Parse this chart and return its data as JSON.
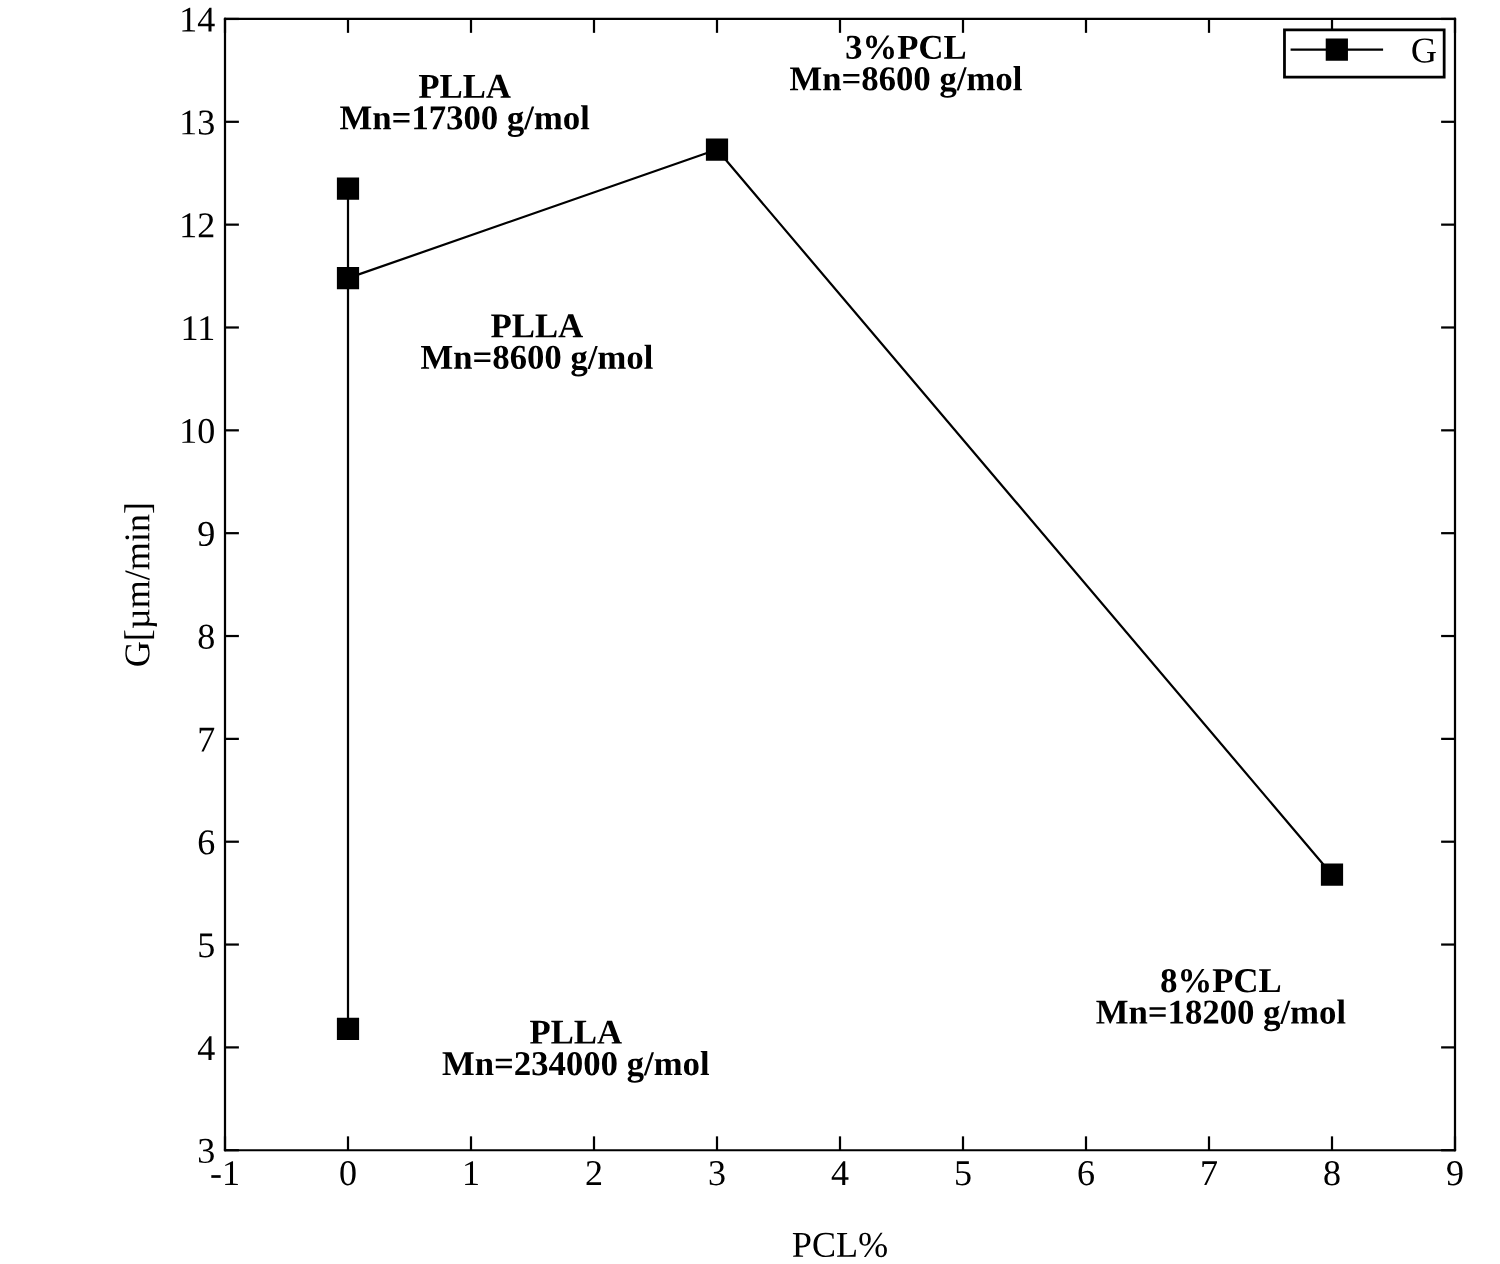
{
  "chart_data": {
    "type": "line",
    "xlabel": "PCL%",
    "ylabel": "G[µm/min]",
    "series": [
      {
        "name": "G",
        "color": "#000000",
        "x": [
          0,
          0,
          0,
          3,
          8
        ],
        "values": [
          4.18,
          12.35,
          11.48,
          12.73,
          5.68
        ]
      }
    ],
    "xlim": [
      -1,
      9
    ],
    "xticks": [
      -1,
      0,
      1,
      2,
      3,
      4,
      5,
      6,
      7,
      8,
      9
    ],
    "ylim": [
      3,
      14
    ],
    "yticks": [
      3,
      4,
      5,
      6,
      7,
      8,
      9,
      10,
      11,
      12,
      13,
      14
    ],
    "marker": "square",
    "line_style": "solid",
    "legend": "top right",
    "grid": false,
    "annotations": [
      {
        "text": "PLLA\nMn=17300 g/mol",
        "x": 0,
        "y": 12.35
      },
      {
        "text": "PLLA\nMn=8600 g/mol",
        "x": 0,
        "y": 11.48
      },
      {
        "text": "3%PCL\nMn=8600 g/mol",
        "x": 3,
        "y": 12.73
      },
      {
        "text": "8%PCL\nMn=18200 g/mol",
        "x": 8,
        "y": 5.68
      },
      {
        "text": "PLLA\nMn=234000 g/mol",
        "x": 0,
        "y": 4.18
      }
    ]
  }
}
